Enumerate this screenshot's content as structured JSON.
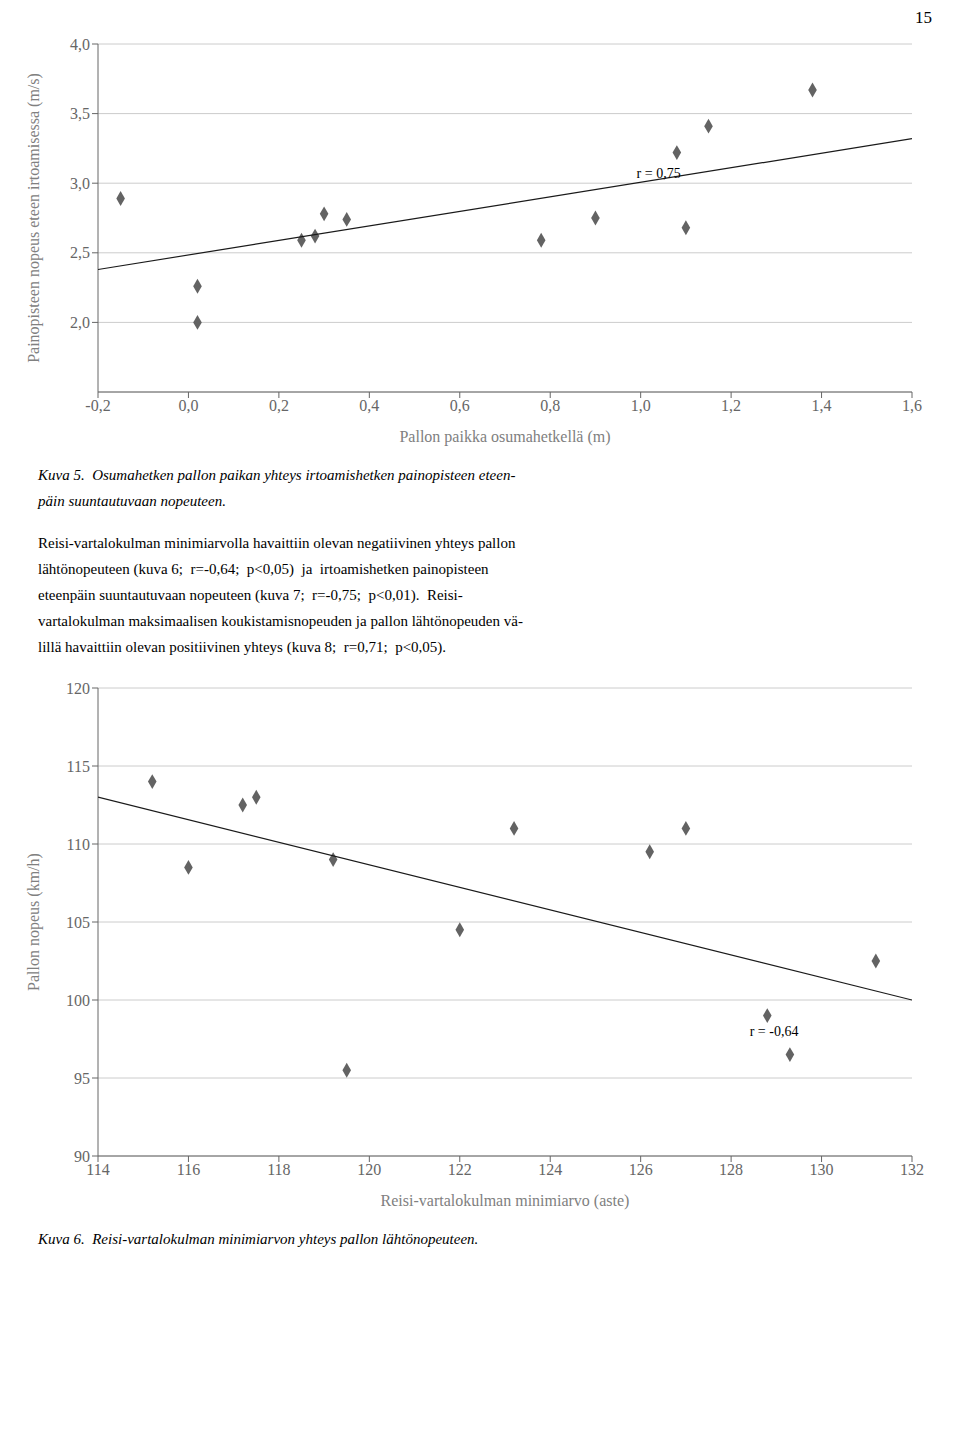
{
  "page_number": "15",
  "text": [
    "Reisi-vartalokulman minimiarvolla havaittiin olevan negatiivinen yhteys pallon",
    "lähtönopeuteen (kuva 6;  r=-0,64;  p<0,05)  ja  irtoamishetken painopisteen",
    "eteenpäin suuntautuvaan nopeuteen (kuva 7;  r=-0,75;  p<0,01).  Reisi-",
    "vartalokulman maksimaalisen koukistamisnopeuden ja pallon lähtönopeuden vä-",
    "lillä havaittiin olevan positiivinen yhteys (kuva 8;  r=0,71;  p<0,05)."
  ],
  "chart_data": [
    {
      "type": "scatter",
      "xlabel": "Pallon paikka osumahetkellä (m)",
      "ylabel": "Painopisteen nopeus eteen irtoamisessa  (m/s)",
      "caption": [
        "Kuva 5.  Osumahetken pallon paikan yhteys irtoamishetken painopisteen eteen-",
        "päin suuntautuvaan nopeuteen."
      ],
      "series": [
        {
          "type": "scatter",
          "marker": "diamond",
          "color": "#636363",
          "x": [
            -0.15,
            0.02,
            0.02,
            0.25,
            0.28,
            0.3,
            0.35,
            0.78,
            0.9,
            1.08,
            1.1,
            1.15,
            1.38
          ],
          "values": [
            2.89,
            2.0,
            2.26,
            2.59,
            2.62,
            2.78,
            2.74,
            2.59,
            2.75,
            3.22,
            2.68,
            3.41,
            3.67
          ]
        },
        {
          "type": "line",
          "color": "#1a1a1a",
          "x": [
            -0.2,
            1.6
          ],
          "values": [
            2.38,
            3.32
          ]
        }
      ],
      "annotations": [
        {
          "text": "r = 0,75",
          "x": 0.98,
          "y": 3.07
        }
      ],
      "xlim": [
        -0.2,
        1.6
      ],
      "ylim": [
        1.5,
        4.0
      ],
      "xticks": [
        {
          "value": -0.2,
          "label": "-0,2"
        },
        {
          "value": 0.0,
          "label": "0,0"
        },
        {
          "value": 0.2,
          "label": "0,2"
        },
        {
          "value": 0.4,
          "label": "0,4"
        },
        {
          "value": 0.6,
          "label": "0,6"
        },
        {
          "value": 0.8,
          "label": "0,8"
        },
        {
          "value": 1.0,
          "label": "1,0"
        },
        {
          "value": 1.2,
          "label": "1,2"
        },
        {
          "value": 1.4,
          "label": "1,4"
        },
        {
          "value": 1.6,
          "label": "1,6"
        }
      ],
      "yticks": [
        {
          "value": 2.0,
          "label": "2,0"
        },
        {
          "value": 2.5,
          "label": "2,5"
        },
        {
          "value": 3.0,
          "label": "3,0"
        },
        {
          "value": 3.5,
          "label": "3,5"
        },
        {
          "value": 4.0,
          "label": "4,0"
        }
      ],
      "grid": "y"
    },
    {
      "type": "scatter",
      "xlabel": "Reisi-vartalokulman minimiarvo (aste)",
      "ylabel": "Pallon nopeus (km/h)",
      "caption": [
        "Kuva 6.  Reisi-vartalokulman minimiarvon yhteys pallon lähtönopeuteen."
      ],
      "series": [
        {
          "type": "scatter",
          "marker": "diamond",
          "color": "#636363",
          "x": [
            115.2,
            116.0,
            117.2,
            117.5,
            119.2,
            119.5,
            122.0,
            123.2,
            126.2,
            127.0,
            128.8,
            129.3,
            131.2
          ],
          "values": [
            114.0,
            108.5,
            112.5,
            113.0,
            109.0,
            95.5,
            104.5,
            111.0,
            109.5,
            111.0,
            99.0,
            96.5,
            102.5
          ]
        },
        {
          "type": "line",
          "color": "#1a1a1a",
          "x": [
            114,
            132
          ],
          "values": [
            113.0,
            100.0
          ]
        }
      ],
      "annotations": [
        {
          "text": "r = -0,64",
          "x": 128.3,
          "y": 98.0
        }
      ],
      "xlim": [
        114,
        132
      ],
      "ylim": [
        90,
        120
      ],
      "xticks": [
        114,
        116,
        118,
        120,
        122,
        124,
        126,
        128,
        130,
        132
      ],
      "yticks": [
        90,
        95,
        100,
        105,
        110,
        115,
        120
      ],
      "grid": "y"
    }
  ]
}
